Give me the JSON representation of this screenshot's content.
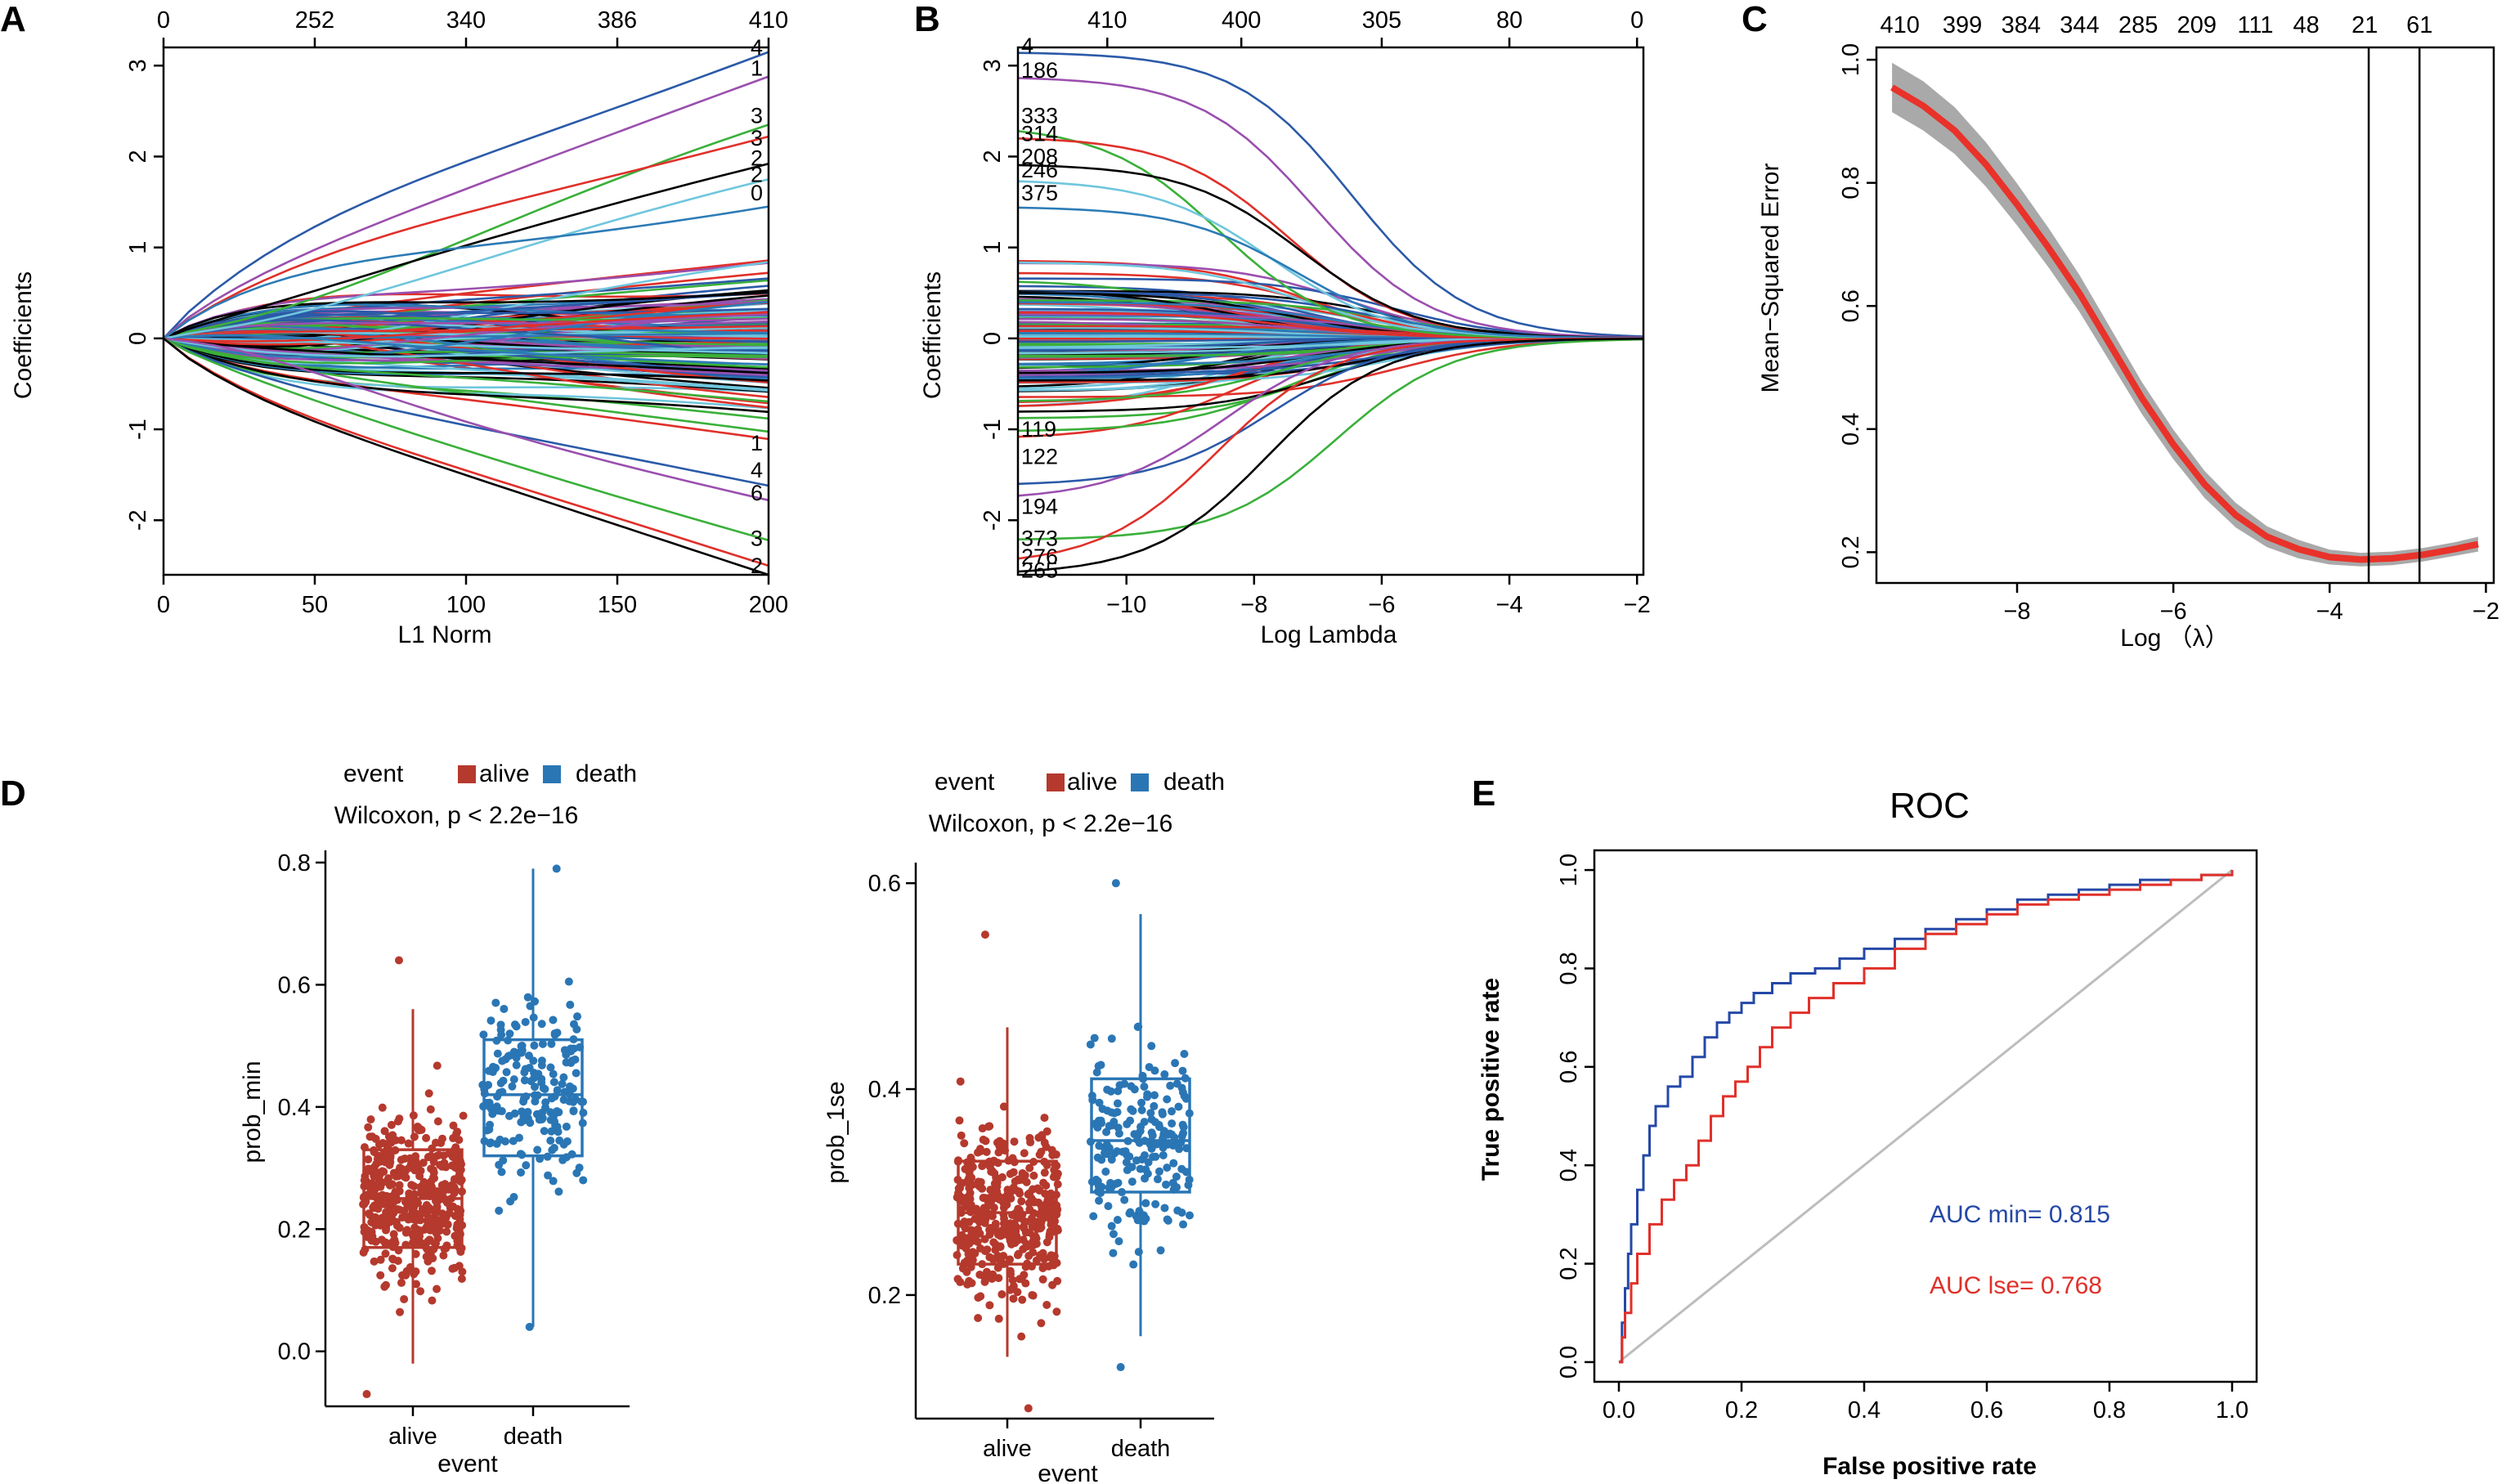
{
  "colors": {
    "path_palette": [
      "#2b5aa8",
      "#9a4fae",
      "#3ab03a",
      "#e0302a",
      "#000000",
      "#6fc6dd",
      "#2c7bb6"
    ],
    "cv_curve": "#e8322a",
    "cv_band": "#a9a9a9",
    "alive": "#b5392d",
    "death": "#2a76b5",
    "roc_min": "#2448a6",
    "roc_1se": "#e0302a",
    "diagonal": "#bdbdbd"
  },
  "panels": {
    "A": "A",
    "B": "B",
    "C": "C",
    "D": "D",
    "E": "E"
  },
  "chart_data": [
    {
      "id": "A",
      "type": "line",
      "title": "",
      "xlabel": "L1 Norm",
      "ylabel": "Coefficients",
      "xlim": [
        0,
        200
      ],
      "ylim": [
        -2.6,
        3.2
      ],
      "x_ticks": [
        0,
        50,
        100,
        150,
        200
      ],
      "y_ticks": [
        -2,
        -1,
        0,
        1,
        2,
        3
      ],
      "top_axis": {
        "at": [
          0,
          50,
          100,
          150,
          200
        ],
        "labels": [
          "0",
          "252",
          "340",
          "386",
          "410"
        ]
      },
      "n_paths": 140,
      "highlight_final": [
        3.15,
        2.88,
        2.35,
        2.22,
        1.92,
        1.75,
        1.45,
        -1.62,
        -1.78,
        -2.22,
        -2.5,
        -2.6
      ],
      "end_labels": [
        {
          "y": 3.2,
          "text": "4"
        },
        {
          "y": 2.97,
          "text": "1"
        },
        {
          "y": 2.45,
          "text": "3"
        },
        {
          "y": 2.2,
          "text": "3"
        },
        {
          "y": 1.98,
          "text": "2"
        },
        {
          "y": 1.8,
          "text": "2"
        },
        {
          "y": 1.6,
          "text": "0"
        },
        {
          "y": -1.15,
          "text": "1"
        },
        {
          "y": -1.45,
          "text": "4"
        },
        {
          "y": -1.7,
          "text": "6"
        },
        {
          "y": -2.2,
          "text": "3"
        },
        {
          "y": -2.5,
          "text": "2"
        }
      ]
    },
    {
      "id": "B",
      "type": "line",
      "title": "",
      "xlabel": "Log Lambda",
      "ylabel": "Coefficients",
      "xlim": [
        -11.7,
        -1.9
      ],
      "ylim": [
        -2.6,
        3.2
      ],
      "x_ticks": [
        -10,
        -8,
        -6,
        -4,
        -2
      ],
      "y_ticks": [
        -2,
        -1,
        0,
        1,
        2,
        3
      ],
      "top_axis": {
        "at": [
          -10.3,
          -8.2,
          -6,
          -4,
          -2
        ],
        "labels": [
          "410",
          "400",
          "305",
          "80",
          "0"
        ]
      },
      "start_labels": [
        {
          "y": 3.22,
          "text": "4"
        },
        {
          "y": 2.95,
          "text": "186"
        },
        {
          "y": 2.45,
          "text": "333"
        },
        {
          "y": 2.25,
          "text": "314"
        },
        {
          "y": 2.0,
          "text": "208"
        },
        {
          "y": 1.85,
          "text": "246"
        },
        {
          "y": 1.6,
          "text": "375"
        },
        {
          "y": -1.0,
          "text": "119"
        },
        {
          "y": -1.3,
          "text": "122"
        },
        {
          "y": -1.85,
          "text": "194"
        },
        {
          "y": -2.2,
          "text": "373"
        },
        {
          "y": -2.4,
          "text": "276"
        },
        {
          "y": -2.55,
          "text": "265"
        }
      ]
    },
    {
      "id": "C",
      "type": "line",
      "title": "",
      "xlabel": "Log （λ）",
      "ylabel": "Mean−Squared Error",
      "xlim": [
        -9.8,
        -1.9
      ],
      "ylim": [
        0.15,
        1.02
      ],
      "x_ticks": [
        -8,
        -6,
        -4,
        -2
      ],
      "y_ticks": [
        0.2,
        0.4,
        0.6,
        0.8,
        1.0
      ],
      "top_axis": {
        "at": [
          -9.5,
          -8.7,
          -7.95,
          -7.2,
          -6.45,
          -5.7,
          -4.95,
          -4.3,
          -3.55,
          -2.85
        ],
        "labels": [
          "410",
          "399",
          "384",
          "344",
          "285",
          "209",
          "111",
          "48",
          "21",
          "61"
        ]
      },
      "x": [
        -9.6,
        -9.2,
        -8.8,
        -8.4,
        -8.0,
        -7.6,
        -7.2,
        -6.8,
        -6.4,
        -6.0,
        -5.6,
        -5.2,
        -4.8,
        -4.4,
        -4.0,
        -3.6,
        -3.2,
        -2.8,
        -2.4,
        -2.1
      ],
      "mse": [
        0.955,
        0.925,
        0.885,
        0.83,
        0.765,
        0.695,
        0.62,
        0.535,
        0.45,
        0.375,
        0.31,
        0.26,
        0.225,
        0.205,
        0.192,
        0.188,
        0.19,
        0.196,
        0.205,
        0.213
      ],
      "band_halfwidth": [
        0.04,
        0.04,
        0.038,
        0.036,
        0.034,
        0.032,
        0.03,
        0.028,
        0.026,
        0.024,
        0.022,
        0.02,
        0.017,
        0.015,
        0.012,
        0.011,
        0.011,
        0.011,
        0.011,
        0.012
      ],
      "vlines": [
        -3.5,
        -2.85
      ]
    },
    {
      "id": "D1",
      "type": "box",
      "legend_title": "event",
      "legend": [
        "alive",
        "death"
      ],
      "subtitle": "Wilcoxon, p < 2.2e−16",
      "xlabel": "event",
      "ylabel": "prob_min",
      "categories": [
        "alive",
        "death"
      ],
      "ylim": [
        -0.09,
        0.82
      ],
      "y_ticks": [
        0.0,
        0.2,
        0.4,
        0.6,
        0.8
      ],
      "y_tick_labels": [
        "0.0",
        "0.2",
        "0.4",
        "0.6",
        "0.8"
      ],
      "boxes": [
        {
          "name": "alive",
          "q1": 0.17,
          "median": 0.25,
          "q3": 0.33,
          "lo": -0.02,
          "hi": 0.56,
          "n": 420,
          "min": -0.07,
          "max": 0.64
        },
        {
          "name": "death",
          "q1": 0.32,
          "median": 0.42,
          "q3": 0.51,
          "lo": 0.04,
          "hi": 0.79,
          "n": 200,
          "min": 0.04,
          "max": 0.79
        }
      ]
    },
    {
      "id": "D2",
      "type": "box",
      "legend_title": "event",
      "legend": [
        "alive",
        "death"
      ],
      "subtitle": "Wilcoxon, p < 2.2e−16",
      "xlabel": "event",
      "ylabel": "prob_1se",
      "categories": [
        "alive",
        "death"
      ],
      "ylim": [
        0.08,
        0.62
      ],
      "y_ticks": [
        0.2,
        0.4,
        0.6
      ],
      "y_tick_labels": [
        "0.2",
        "0.4",
        "0.6"
      ],
      "boxes": [
        {
          "name": "alive",
          "q1": 0.23,
          "median": 0.28,
          "q3": 0.33,
          "lo": 0.14,
          "hi": 0.46,
          "n": 420,
          "min": 0.09,
          "max": 0.55
        },
        {
          "name": "death",
          "q1": 0.3,
          "median": 0.35,
          "q3": 0.41,
          "lo": 0.16,
          "hi": 0.57,
          "n": 200,
          "min": 0.13,
          "max": 0.6
        }
      ]
    },
    {
      "id": "E",
      "type": "line",
      "title": "ROC",
      "xlabel": "False positive rate",
      "ylabel": "True positive rate",
      "xlim": [
        0,
        1
      ],
      "ylim": [
        0,
        1
      ],
      "x_ticks": [
        0.0,
        0.2,
        0.4,
        0.6,
        0.8,
        1.0
      ],
      "y_ticks": [
        0.0,
        0.2,
        0.4,
        0.6,
        0.8,
        1.0
      ],
      "tick_labels": [
        "0.0",
        "0.2",
        "0.4",
        "0.6",
        "0.8",
        "1.0"
      ],
      "series": [
        {
          "name": "AUC min= 0.815",
          "fpr": [
            0,
            0.005,
            0.01,
            0.015,
            0.02,
            0.03,
            0.04,
            0.05,
            0.06,
            0.08,
            0.1,
            0.12,
            0.14,
            0.16,
            0.18,
            0.2,
            0.22,
            0.25,
            0.28,
            0.32,
            0.36,
            0.4,
            0.45,
            0.5,
            0.55,
            0.6,
            0.65,
            0.7,
            0.75,
            0.8,
            0.85,
            0.9,
            0.95,
            1.0
          ],
          "tpr": [
            0,
            0.08,
            0.15,
            0.22,
            0.28,
            0.35,
            0.42,
            0.48,
            0.52,
            0.56,
            0.58,
            0.62,
            0.66,
            0.69,
            0.71,
            0.73,
            0.75,
            0.77,
            0.79,
            0.8,
            0.82,
            0.84,
            0.86,
            0.88,
            0.9,
            0.92,
            0.94,
            0.95,
            0.96,
            0.97,
            0.98,
            0.98,
            0.99,
            1.0
          ]
        },
        {
          "name": "AUC lse= 0.768",
          "fpr": [
            0,
            0.005,
            0.01,
            0.02,
            0.03,
            0.05,
            0.07,
            0.09,
            0.11,
            0.13,
            0.15,
            0.17,
            0.19,
            0.21,
            0.23,
            0.25,
            0.28,
            0.31,
            0.35,
            0.4,
            0.45,
            0.5,
            0.55,
            0.6,
            0.65,
            0.7,
            0.75,
            0.8,
            0.85,
            0.9,
            0.95,
            1.0
          ],
          "tpr": [
            0,
            0.05,
            0.1,
            0.16,
            0.22,
            0.28,
            0.33,
            0.37,
            0.4,
            0.45,
            0.5,
            0.54,
            0.57,
            0.6,
            0.64,
            0.68,
            0.71,
            0.74,
            0.77,
            0.8,
            0.84,
            0.87,
            0.89,
            0.91,
            0.93,
            0.94,
            0.95,
            0.96,
            0.97,
            0.98,
            0.99,
            1.0
          ]
        }
      ],
      "annotations": [
        "AUC min= 0.815",
        "AUC lse= 0.768"
      ]
    }
  ]
}
